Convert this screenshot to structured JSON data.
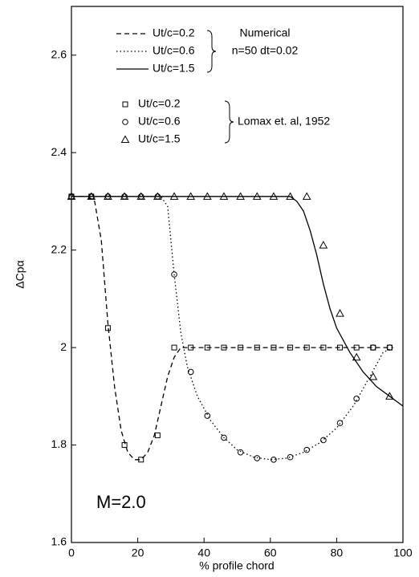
{
  "chart_data": {
    "type": "line",
    "ylabel": "ΔCpα",
    "xlabel": "% profile chord",
    "annotation": "M=2.0",
    "group_labels": [
      "Numerical",
      "n=50 dt=0.02",
      "Lomax et. al, 1952"
    ],
    "xlim": [
      0,
      100
    ],
    "xticks": [
      0,
      20,
      40,
      60,
      80,
      100
    ],
    "ylim": [
      1.6,
      2.7
    ],
    "yticks": [
      1.6,
      1.8,
      2.0,
      2.2,
      2.4,
      2.6
    ],
    "series": [
      {
        "name": "Ut/c=0.2",
        "color": "#000000",
        "dash": "6,4",
        "x": [
          0,
          5,
          7,
          9,
          11,
          13,
          15,
          17,
          19,
          21,
          23,
          25,
          27,
          29,
          31,
          33,
          36,
          97
        ],
        "values": [
          2.31,
          2.31,
          2.3,
          2.22,
          2.05,
          1.92,
          1.83,
          1.785,
          1.77,
          1.77,
          1.785,
          1.82,
          1.88,
          1.94,
          1.98,
          2.0,
          2.0,
          2.0
        ]
      },
      {
        "name": "Ut/c=0.6",
        "color": "#000000",
        "dash": "1.5,3",
        "x": [
          0,
          27,
          29,
          31,
          33,
          35,
          38,
          42,
          46,
          50,
          55,
          60,
          65,
          70,
          75,
          80,
          85,
          90,
          94,
          97
        ],
        "values": [
          2.31,
          2.31,
          2.29,
          2.15,
          2.03,
          1.96,
          1.9,
          1.85,
          1.815,
          1.79,
          1.775,
          1.77,
          1.773,
          1.785,
          1.805,
          1.835,
          1.88,
          1.94,
          1.99,
          2.0
        ]
      },
      {
        "name": "Ut/c=1.5",
        "color": "#000000",
        "dash": "none",
        "x": [
          0,
          66,
          68,
          70,
          72,
          74,
          76,
          78,
          80,
          84,
          88,
          92,
          96,
          100
        ],
        "values": [
          2.31,
          2.31,
          2.3,
          2.28,
          2.24,
          2.19,
          2.13,
          2.08,
          2.04,
          1.99,
          1.95,
          1.92,
          1.9,
          1.88
        ]
      },
      {
        "name": "Ut/c=0.2",
        "color": "#000000",
        "marker": "square",
        "x": [
          0,
          6,
          11,
          16,
          21,
          26,
          31,
          36,
          41,
          46,
          51,
          56,
          61,
          66,
          71,
          76,
          81,
          86,
          91,
          96
        ],
        "values": [
          2.31,
          2.31,
          2.04,
          1.8,
          1.77,
          1.82,
          2.0,
          2.0,
          2.0,
          2.0,
          2.0,
          2.0,
          2.0,
          2.0,
          2.0,
          2.0,
          2.0,
          2.0,
          2.0,
          2.0
        ]
      },
      {
        "name": "Ut/c=0.6",
        "color": "#000000",
        "marker": "circle",
        "x": [
          0,
          6,
          11,
          16,
          21,
          26,
          31,
          36,
          41,
          46,
          51,
          56,
          61,
          66,
          71,
          76,
          81,
          86,
          91,
          96
        ],
        "values": [
          2.31,
          2.31,
          2.31,
          2.31,
          2.31,
          2.31,
          2.15,
          1.95,
          1.86,
          1.815,
          1.785,
          1.773,
          1.77,
          1.775,
          1.79,
          1.81,
          1.845,
          1.895,
          2.0,
          2.0
        ]
      },
      {
        "name": "Ut/c=1.5",
        "color": "#000000",
        "marker": "triangle",
        "x": [
          0,
          6,
          11,
          16,
          21,
          26,
          31,
          36,
          41,
          46,
          51,
          56,
          61,
          66,
          71,
          76,
          81,
          86,
          91,
          96
        ],
        "values": [
          2.31,
          2.31,
          2.31,
          2.31,
          2.31,
          2.31,
          2.31,
          2.31,
          2.31,
          2.31,
          2.31,
          2.31,
          2.31,
          2.31,
          2.31,
          2.21,
          2.07,
          1.98,
          1.94,
          1.9
        ]
      }
    ]
  }
}
